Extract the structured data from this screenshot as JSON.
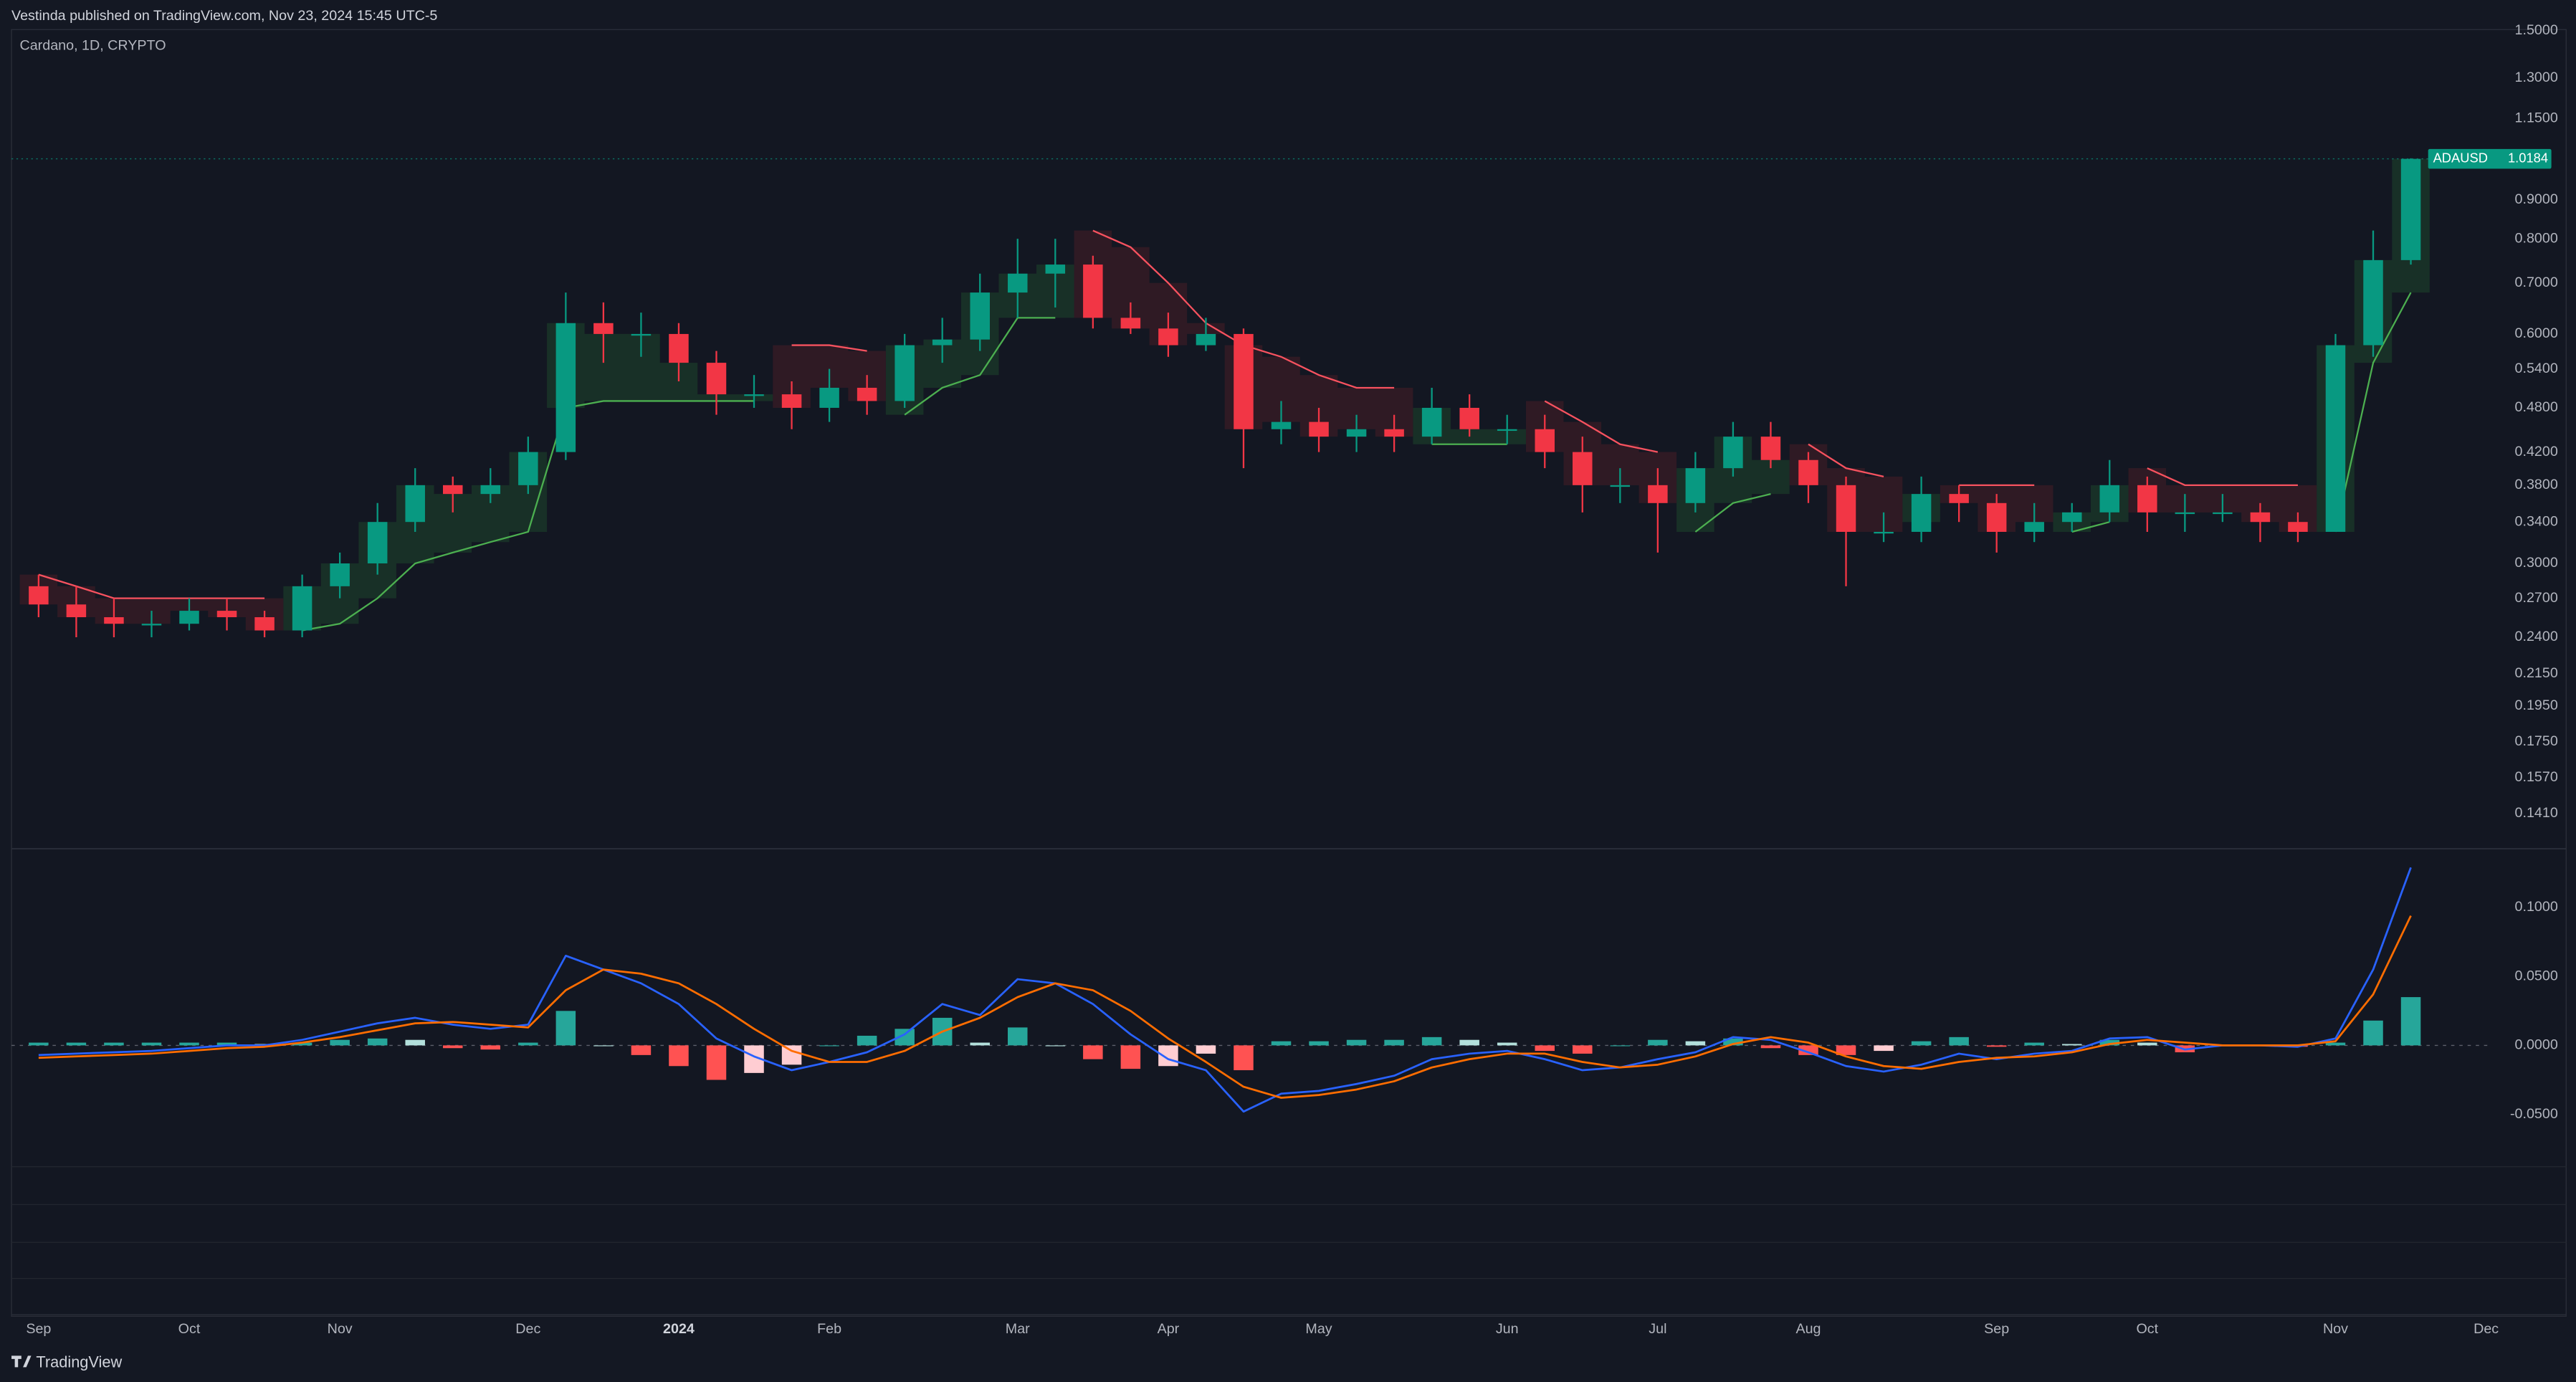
{
  "header": {
    "publisher": "Vestinda published on TradingView.com, Nov 23, 2024 15:45 UTC-5",
    "logo": "TradingView"
  },
  "chart_data": [
    {
      "type": "candlestick",
      "title": "Cardano, 1D, CRYPTO",
      "log_scale": true,
      "categories": [
        "Sep",
        null,
        null,
        null,
        "Oct",
        null,
        null,
        null,
        "Nov",
        null,
        null,
        null,
        null,
        "Dec",
        null,
        null,
        null,
        "2024",
        null,
        null,
        null,
        "Feb",
        null,
        null,
        null,
        null,
        "Mar",
        null,
        null,
        null,
        "Apr",
        null,
        null,
        null,
        "May",
        null,
        null,
        null,
        null,
        "Jun",
        null,
        null,
        null,
        "Jul",
        null,
        null,
        null,
        "Aug",
        null,
        null,
        null,
        null,
        "Sep",
        null,
        null,
        null,
        "Oct",
        null,
        null,
        null,
        null,
        "Nov",
        null,
        null,
        null,
        "Dec"
      ],
      "open": [
        0.28,
        0.265,
        0.255,
        0.25,
        0.25,
        0.26,
        0.255,
        0.245,
        0.28,
        0.3,
        0.34,
        0.38,
        0.37,
        0.38,
        0.42,
        0.62,
        0.6,
        0.6,
        0.55,
        0.5,
        0.5,
        0.48,
        0.51,
        0.49,
        0.58,
        0.59,
        0.68,
        0.72,
        0.74,
        0.63,
        0.61,
        0.58,
        0.6,
        0.45,
        0.46,
        0.44,
        0.45,
        0.44,
        0.48,
        0.45,
        0.45,
        0.42,
        0.38,
        0.38,
        0.36,
        0.4,
        0.44,
        0.41,
        0.38,
        0.33,
        0.33,
        0.37,
        0.36,
        0.33,
        0.34,
        0.35,
        0.38,
        0.35,
        0.35,
        0.35,
        0.34,
        0.33,
        0.58,
        0.75,
        null,
        null
      ],
      "high": [
        0.29,
        0.28,
        0.27,
        0.26,
        0.27,
        0.27,
        0.26,
        0.29,
        0.31,
        0.36,
        0.4,
        0.39,
        0.4,
        0.44,
        0.68,
        0.66,
        0.64,
        0.62,
        0.57,
        0.53,
        0.52,
        0.54,
        0.53,
        0.6,
        0.63,
        0.72,
        0.8,
        0.8,
        0.76,
        0.66,
        0.64,
        0.63,
        0.61,
        0.49,
        0.48,
        0.47,
        0.47,
        0.51,
        0.5,
        0.47,
        0.47,
        0.44,
        0.4,
        0.4,
        0.42,
        0.46,
        0.46,
        0.42,
        0.39,
        0.35,
        0.39,
        0.38,
        0.37,
        0.36,
        0.36,
        0.41,
        0.39,
        0.37,
        0.37,
        0.36,
        0.35,
        0.6,
        0.82,
        1.02,
        null,
        null
      ],
      "low": [
        0.255,
        0.24,
        0.24,
        0.24,
        0.245,
        0.245,
        0.24,
        0.24,
        0.27,
        0.29,
        0.33,
        0.35,
        0.36,
        0.37,
        0.41,
        0.55,
        0.56,
        0.52,
        0.47,
        0.48,
        0.45,
        0.46,
        0.47,
        0.48,
        0.55,
        0.57,
        0.63,
        0.65,
        0.61,
        0.6,
        0.56,
        0.57,
        0.4,
        0.43,
        0.42,
        0.42,
        0.42,
        0.43,
        0.44,
        0.43,
        0.4,
        0.35,
        0.36,
        0.31,
        0.35,
        0.39,
        0.4,
        0.36,
        0.28,
        0.32,
        0.32,
        0.34,
        0.31,
        0.32,
        0.33,
        0.34,
        0.33,
        0.33,
        0.34,
        0.32,
        0.32,
        0.33,
        0.56,
        0.74,
        null,
        null
      ],
      "close": [
        0.265,
        0.255,
        0.25,
        0.25,
        0.26,
        0.255,
        0.245,
        0.28,
        0.3,
        0.34,
        0.38,
        0.37,
        0.38,
        0.42,
        0.62,
        0.6,
        0.6,
        0.55,
        0.5,
        0.5,
        0.48,
        0.51,
        0.49,
        0.58,
        0.59,
        0.68,
        0.72,
        0.74,
        0.63,
        0.61,
        0.58,
        0.6,
        0.45,
        0.46,
        0.44,
        0.45,
        0.44,
        0.48,
        0.45,
        0.45,
        0.42,
        0.38,
        0.38,
        0.36,
        0.4,
        0.44,
        0.41,
        0.38,
        0.33,
        0.33,
        0.37,
        0.36,
        0.33,
        0.34,
        0.35,
        0.38,
        0.35,
        0.35,
        0.35,
        0.34,
        0.33,
        0.58,
        0.75,
        1.0184,
        null,
        null
      ],
      "up_color": "#089981",
      "down_color": "#f23645",
      "overlays": [
        {
          "color": "#4caf50",
          "fill": "#1b3a2a",
          "values": [
            null,
            null,
            null,
            null,
            null,
            null,
            null,
            0.245,
            0.25,
            0.27,
            0.3,
            0.31,
            0.32,
            0.33,
            0.48,
            0.49,
            0.49,
            0.49,
            0.49,
            0.49,
            null,
            null,
            null,
            0.47,
            0.51,
            0.53,
            0.63,
            0.63,
            null,
            null,
            null,
            null,
            null,
            null,
            null,
            null,
            null,
            0.43,
            0.43,
            0.43,
            null,
            null,
            null,
            null,
            0.33,
            0.36,
            0.37,
            null,
            null,
            null,
            0.34,
            null,
            null,
            null,
            0.33,
            0.34,
            null,
            null,
            null,
            null,
            null,
            0.33,
            0.55,
            0.68,
            null,
            null
          ]
        },
        {
          "color": "#f7525f",
          "fill": "#3a1c26",
          "values": [
            0.29,
            0.28,
            0.27,
            0.27,
            0.27,
            0.27,
            0.27,
            null,
            null,
            null,
            null,
            null,
            null,
            null,
            null,
            null,
            null,
            null,
            null,
            null,
            0.58,
            0.58,
            0.57,
            null,
            null,
            null,
            null,
            null,
            0.82,
            0.78,
            0.7,
            0.62,
            0.58,
            0.56,
            0.53,
            0.51,
            0.51,
            null,
            null,
            null,
            0.49,
            0.46,
            0.43,
            0.42,
            null,
            null,
            null,
            0.43,
            0.4,
            0.39,
            null,
            0.38,
            0.38,
            0.38,
            null,
            null,
            0.4,
            0.38,
            0.38,
            0.38,
            0.38,
            null,
            null,
            null,
            null,
            null
          ]
        }
      ],
      "price_label": {
        "name": "ADAUSD",
        "value": 1.0184,
        "color": "#089981"
      },
      "ylim": [
        0.127,
        1.505
      ],
      "yticks": [
        {
          "value": 1.5,
          "label": "1.5000"
        },
        {
          "value": 1.3,
          "label": "1.3000"
        },
        {
          "value": 1.15,
          "label": "1.1500"
        },
        {
          "value": 0.9,
          "label": "0.9000"
        },
        {
          "value": 0.8,
          "label": "0.8000"
        },
        {
          "value": 0.7,
          "label": "0.7000"
        },
        {
          "value": 0.6,
          "label": "0.6000"
        },
        {
          "value": 0.54,
          "label": "0.5400"
        },
        {
          "value": 0.48,
          "label": "0.4800"
        },
        {
          "value": 0.42,
          "label": "0.4200"
        },
        {
          "value": 0.38,
          "label": "0.3800"
        },
        {
          "value": 0.34,
          "label": "0.3400"
        },
        {
          "value": 0.3,
          "label": "0.3000"
        },
        {
          "value": 0.27,
          "label": "0.2700"
        },
        {
          "value": 0.24,
          "label": "0.2400"
        },
        {
          "value": 0.215,
          "label": "0.2150"
        },
        {
          "value": 0.195,
          "label": "0.1950"
        },
        {
          "value": 0.175,
          "label": "0.1750"
        },
        {
          "value": 0.157,
          "label": "0.1570"
        },
        {
          "value": 0.141,
          "label": "0.1410"
        }
      ]
    },
    {
      "type": "macd",
      "series": [
        {
          "color": "#2962ff",
          "values": [
            -0.007,
            -0.006,
            -0.005,
            -0.004,
            -0.002,
            0,
            0,
            0.004,
            0.01,
            0.016,
            0.02,
            0.015,
            0.012,
            0.015,
            0.065,
            0.055,
            0.045,
            0.03,
            0.005,
            -0.008,
            -0.018,
            -0.012,
            -0.005,
            0.008,
            0.03,
            0.022,
            0.048,
            0.045,
            0.03,
            0.008,
            -0.01,
            -0.018,
            -0.048,
            -0.035,
            -0.033,
            -0.028,
            -0.022,
            -0.01,
            -0.006,
            -0.004,
            -0.01,
            -0.018,
            -0.016,
            -0.01,
            -0.005,
            0.006,
            0.004,
            -0.005,
            -0.015,
            -0.019,
            -0.014,
            -0.006,
            -0.01,
            -0.006,
            -0.004,
            0.005,
            0.006,
            -0.003,
            0,
            0,
            -0.001,
            0.005,
            0.055,
            0.129,
            null,
            null
          ]
        },
        {
          "color": "#ff6d00",
          "values": [
            -0.009,
            -0.008,
            -0.007,
            -0.006,
            -0.004,
            -0.002,
            -0.001,
            0.002,
            0.006,
            0.011,
            0.016,
            0.017,
            0.015,
            0.013,
            0.04,
            0.055,
            0.052,
            0.045,
            0.03,
            0.012,
            -0.004,
            -0.012,
            -0.012,
            -0.004,
            0.01,
            0.02,
            0.035,
            0.045,
            0.04,
            0.025,
            0.005,
            -0.012,
            -0.03,
            -0.038,
            -0.036,
            -0.032,
            -0.026,
            -0.016,
            -0.01,
            -0.006,
            -0.006,
            -0.012,
            -0.016,
            -0.014,
            -0.008,
            0.001,
            0.006,
            0.002,
            -0.008,
            -0.015,
            -0.017,
            -0.012,
            -0.009,
            -0.008,
            -0.005,
            0.001,
            0.004,
            0.002,
            0,
            0,
            0,
            0.003,
            0.037,
            0.094,
            null,
            null
          ]
        }
      ],
      "histogram": {
        "colors": [
          "#26a69a",
          "#b2dfdb",
          "#ff5252",
          "#ffcdd2"
        ],
        "values": [
          0.002,
          0.002,
          0.002,
          0.002,
          0.002,
          0.002,
          0.001,
          0.002,
          0.004,
          0.005,
          0.004,
          -0.002,
          -0.003,
          0.002,
          0.025,
          0,
          -0.007,
          -0.015,
          -0.025,
          -0.02,
          -0.014,
          0,
          0.007,
          0.012,
          0.02,
          0.002,
          0.013,
          0,
          -0.01,
          -0.017,
          -0.015,
          -0.006,
          -0.018,
          0.003,
          0.003,
          0.004,
          0.004,
          0.006,
          0.004,
          0.002,
          -0.004,
          -0.006,
          0,
          0.004,
          0.003,
          0.005,
          -0.002,
          -0.007,
          -0.007,
          -0.004,
          0.003,
          0.006,
          -0.001,
          0.002,
          0.001,
          0.004,
          0.002,
          -0.005,
          0,
          0,
          -0.001,
          0.002,
          0.018,
          0.035,
          null,
          null
        ]
      },
      "ylim": [
        -0.088,
        0.142
      ],
      "yticks": [
        {
          "value": 0.1,
          "label": "0.1000"
        },
        {
          "value": 0.05,
          "label": "0.0500"
        },
        {
          "value": 0,
          "label": "0.0000"
        },
        {
          "value": -0.05,
          "label": "-0.0500"
        }
      ]
    }
  ]
}
